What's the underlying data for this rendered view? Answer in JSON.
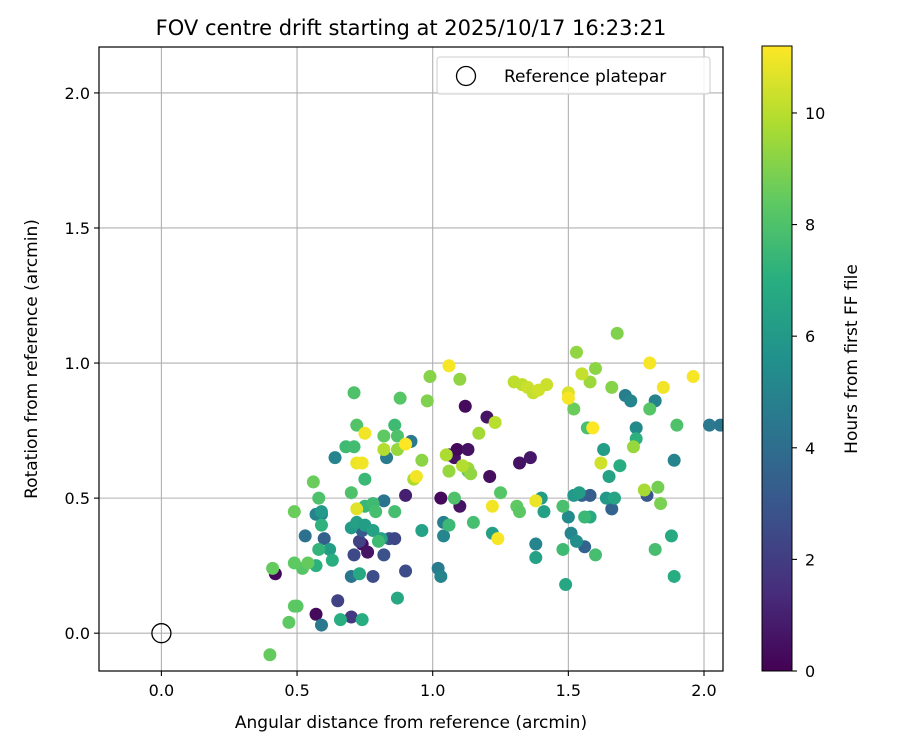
{
  "chart_data": {
    "type": "scatter",
    "title": "FOV centre drift starting at 2025/10/17 16:23:21",
    "xlabel": "Angular distance from reference (arcmin)",
    "ylabel": "Rotation from reference (arcmin)",
    "xlim": [
      -0.23,
      2.07
    ],
    "ylim": [
      -0.14,
      2.17
    ],
    "x_ticks": [
      0.0,
      0.5,
      1.0,
      1.5,
      2.0
    ],
    "y_ticks": [
      0.0,
      0.5,
      1.0,
      1.5,
      2.0
    ],
    "x_tick_labels": [
      "0.0",
      "0.5",
      "1.0",
      "1.5",
      "2.0"
    ],
    "y_tick_labels": [
      "0.0",
      "0.5",
      "1.0",
      "1.5",
      "2.0"
    ],
    "grid": true,
    "colormap": "viridis",
    "colorbar": {
      "label": "Hours from first FF file",
      "min": 0,
      "max": 11.2,
      "ticks": [
        0,
        2,
        4,
        6,
        8,
        10
      ],
      "tick_labels": [
        "0",
        "2",
        "4",
        "6",
        "8",
        "10"
      ]
    },
    "legend": {
      "position": "top-right",
      "entries": [
        "Reference platepar"
      ]
    },
    "reference_point": {
      "x": 0.0,
      "y": 0.0
    },
    "point_fields": [
      "x",
      "y",
      "hours"
    ],
    "points": [
      [
        0.42,
        0.22,
        0.2
      ],
      [
        0.57,
        0.07,
        0.3
      ],
      [
        0.74,
        0.33,
        0.4
      ],
      [
        0.76,
        0.3,
        0.6
      ],
      [
        0.9,
        0.51,
        1.0
      ],
      [
        1.03,
        0.5,
        0.3
      ],
      [
        1.06,
        0.66,
        0.4
      ],
      [
        1.08,
        0.65,
        0.5
      ],
      [
        1.09,
        0.68,
        0.2
      ],
      [
        1.1,
        0.47,
        0.6
      ],
      [
        1.12,
        0.84,
        0.3
      ],
      [
        1.13,
        0.68,
        0.5
      ],
      [
        1.2,
        0.8,
        0.6
      ],
      [
        1.21,
        0.58,
        0.4
      ],
      [
        1.32,
        0.63,
        0.5
      ],
      [
        1.36,
        0.65,
        0.7
      ],
      [
        0.7,
        0.06,
        1.8
      ],
      [
        0.65,
        0.12,
        2.2
      ],
      [
        0.71,
        0.29,
        2.5
      ],
      [
        0.73,
        0.34,
        2.2
      ],
      [
        0.78,
        0.21,
        2.6
      ],
      [
        0.82,
        0.29,
        2.8
      ],
      [
        0.84,
        0.35,
        3.0
      ],
      [
        0.86,
        0.35,
        2.4
      ],
      [
        0.9,
        0.23,
        2.6
      ],
      [
        0.74,
        0.38,
        3.2
      ],
      [
        0.6,
        0.35,
        3.4
      ],
      [
        1.66,
        0.46,
        3.6
      ],
      [
        1.79,
        0.51,
        3.0
      ],
      [
        1.55,
        0.51,
        3.6
      ],
      [
        1.58,
        0.51,
        3.3
      ],
      [
        1.56,
        0.32,
        3.6
      ],
      [
        0.53,
        0.36,
        4.2
      ],
      [
        0.7,
        0.21,
        4.4
      ],
      [
        0.59,
        0.03,
        4.5
      ],
      [
        0.82,
        0.49,
        4.3
      ],
      [
        0.83,
        0.65,
        4.6
      ],
      [
        0.92,
        0.71,
        4.5
      ],
      [
        1.02,
        0.24,
        4.6
      ],
      [
        1.04,
        0.41,
        4.8
      ],
      [
        1.03,
        0.21,
        5.0
      ],
      [
        1.04,
        0.36,
        5.1
      ],
      [
        1.38,
        0.33,
        5.0
      ],
      [
        1.5,
        0.43,
        5.3
      ],
      [
        1.51,
        0.37,
        5.1
      ],
      [
        1.53,
        0.34,
        5.5
      ],
      [
        1.71,
        0.88,
        4.8
      ],
      [
        1.73,
        0.86,
        5.0
      ],
      [
        1.75,
        0.76,
        5.3
      ],
      [
        1.82,
        0.86,
        4.9
      ],
      [
        1.89,
        0.64,
        5.0
      ],
      [
        2.02,
        0.77,
        4.5
      ],
      [
        2.06,
        0.77,
        4.4
      ],
      [
        0.57,
        0.44,
        4.9
      ],
      [
        0.59,
        0.44,
        5.0
      ],
      [
        0.64,
        0.65,
        5.0
      ],
      [
        0.59,
        0.45,
        6.0
      ],
      [
        0.62,
        0.31,
        6.2
      ],
      [
        0.7,
        0.39,
        6.1
      ],
      [
        0.72,
        0.41,
        6.3
      ],
      [
        0.75,
        0.4,
        6.2
      ],
      [
        0.78,
        0.38,
        6.4
      ],
      [
        0.81,
        0.35,
        6.5
      ],
      [
        0.87,
        0.13,
        6.7
      ],
      [
        0.96,
        0.38,
        6.4
      ],
      [
        1.22,
        0.37,
        6.3
      ],
      [
        1.38,
        0.28,
        6.4
      ],
      [
        1.4,
        0.5,
        6.1
      ],
      [
        1.41,
        0.45,
        6.3
      ],
      [
        1.49,
        0.18,
        6.6
      ],
      [
        1.52,
        0.51,
        6.0
      ],
      [
        1.54,
        0.52,
        6.2
      ],
      [
        1.63,
        0.68,
        6.2
      ],
      [
        1.64,
        0.5,
        6.0
      ],
      [
        1.65,
        0.58,
        6.4
      ],
      [
        1.67,
        0.5,
        6.5
      ],
      [
        1.69,
        0.62,
        6.9
      ],
      [
        1.75,
        0.72,
        7.1
      ],
      [
        1.58,
        0.43,
        6.8
      ],
      [
        1.88,
        0.36,
        6.8
      ],
      [
        1.89,
        0.21,
        6.9
      ],
      [
        0.73,
        0.22,
        6.7
      ],
      [
        0.74,
        0.05,
        6.9
      ],
      [
        0.66,
        0.05,
        7.0
      ],
      [
        0.63,
        0.27,
        7.0
      ],
      [
        0.57,
        0.25,
        7.1
      ],
      [
        0.59,
        0.4,
        7.2
      ],
      [
        0.58,
        0.31,
        7.3
      ],
      [
        0.68,
        0.69,
        7.6
      ],
      [
        0.71,
        0.69,
        7.7
      ],
      [
        0.75,
        0.57,
        7.5
      ],
      [
        0.75,
        0.47,
        7.4
      ],
      [
        0.78,
        0.48,
        7.6
      ],
      [
        0.8,
        0.34,
        7.6
      ],
      [
        0.79,
        0.45,
        7.8
      ],
      [
        0.86,
        0.45,
        7.8
      ],
      [
        0.86,
        0.77,
        7.6
      ],
      [
        1.06,
        0.4,
        7.5
      ],
      [
        1.15,
        0.41,
        7.8
      ],
      [
        1.48,
        0.31,
        7.6
      ],
      [
        1.56,
        0.43,
        7.5
      ],
      [
        1.6,
        0.29,
        7.8
      ],
      [
        1.48,
        0.47,
        7.9
      ],
      [
        1.57,
        0.76,
        7.9
      ],
      [
        1.82,
        0.31,
        7.8
      ],
      [
        1.9,
        0.77,
        8.0
      ],
      [
        1.8,
        0.83,
        8.2
      ],
      [
        0.58,
        0.5,
        8.0
      ],
      [
        0.7,
        0.52,
        8.0
      ],
      [
        0.71,
        0.89,
        8.0
      ],
      [
        0.72,
        0.77,
        8.1
      ],
      [
        0.88,
        0.87,
        8.2
      ],
      [
        0.87,
        0.73,
        8.0
      ],
      [
        0.82,
        0.73,
        8.4
      ],
      [
        0.52,
        0.24,
        8.2
      ],
      [
        0.41,
        0.24,
        8.5
      ],
      [
        0.47,
        0.04,
        8.4
      ],
      [
        0.49,
        0.1,
        8.4
      ],
      [
        0.5,
        0.1,
        8.3
      ],
      [
        0.4,
        -0.08,
        8.5
      ],
      [
        0.49,
        0.26,
        8.4
      ],
      [
        0.49,
        0.45,
        8.6
      ],
      [
        0.54,
        0.26,
        8.5
      ],
      [
        0.56,
        0.56,
        8.6
      ],
      [
        1.08,
        0.5,
        8.0
      ],
      [
        1.13,
        0.6,
        8.3
      ],
      [
        1.25,
        0.52,
        8.2
      ],
      [
        1.31,
        0.47,
        8.4
      ],
      [
        1.32,
        0.45,
        8.3
      ],
      [
        1.52,
        0.83,
        8.6
      ],
      [
        1.83,
        0.54,
        8.8
      ],
      [
        1.84,
        0.48,
        8.9
      ],
      [
        0.99,
        0.95,
        9.1
      ],
      [
        0.98,
        0.86,
        9.0
      ],
      [
        0.87,
        0.68,
        9.4
      ],
      [
        0.96,
        0.64,
        9.2
      ],
      [
        1.06,
        0.6,
        9.4
      ],
      [
        1.1,
        0.94,
        9.3
      ],
      [
        1.13,
        0.61,
        9.5
      ],
      [
        1.14,
        0.59,
        9.3
      ],
      [
        1.17,
        0.74,
        9.6
      ],
      [
        1.53,
        1.04,
        9.3
      ],
      [
        1.58,
        0.93,
        9.5
      ],
      [
        1.6,
        0.98,
        9.2
      ],
      [
        1.66,
        0.91,
        9.1
      ],
      [
        1.68,
        1.11,
        9.0
      ],
      [
        1.74,
        0.69,
        9.4
      ],
      [
        1.78,
        0.53,
        9.7
      ],
      [
        0.82,
        0.68,
        9.9
      ],
      [
        0.93,
        0.57,
        9.8
      ],
      [
        1.05,
        0.66,
        9.8
      ],
      [
        1.11,
        0.62,
        9.9
      ],
      [
        1.23,
        0.78,
        10.0
      ],
      [
        1.3,
        0.93,
        10.1
      ],
      [
        1.33,
        0.92,
        10.1
      ],
      [
        1.35,
        0.91,
        10.3
      ],
      [
        1.37,
        0.89,
        10.2
      ],
      [
        1.39,
        0.9,
        10.4
      ],
      [
        1.42,
        0.92,
        10.3
      ],
      [
        1.5,
        0.89,
        10.6
      ],
      [
        1.55,
        0.96,
        10.2
      ],
      [
        1.62,
        0.63,
        10.4
      ],
      [
        0.72,
        0.46,
        10.7
      ],
      [
        0.72,
        0.63,
        10.9
      ],
      [
        0.74,
        0.63,
        11.0
      ],
      [
        0.75,
        0.74,
        11.0
      ],
      [
        0.9,
        0.7,
        11.2
      ],
      [
        0.94,
        0.58,
        11.0
      ],
      [
        1.06,
        0.99,
        11.1
      ],
      [
        1.22,
        0.47,
        11.0
      ],
      [
        1.24,
        0.35,
        11.1
      ],
      [
        1.38,
        0.49,
        10.9
      ],
      [
        1.5,
        0.87,
        11.1
      ],
      [
        1.59,
        0.76,
        11.2
      ],
      [
        1.8,
        1.0,
        11.1
      ],
      [
        1.85,
        0.91,
        11.0
      ],
      [
        1.96,
        0.95,
        11.1
      ]
    ]
  }
}
